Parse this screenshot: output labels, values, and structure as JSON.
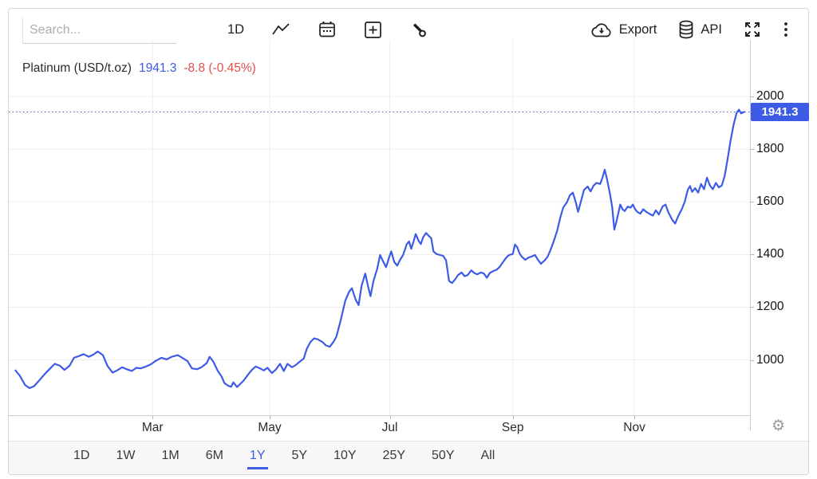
{
  "toolbar": {
    "search_placeholder": "Search...",
    "interval_label": "1D",
    "export_label": "Export",
    "api_label": "API"
  },
  "legend": {
    "instrument": "Platinum (USD/t.oz)",
    "price": "1941.3",
    "change": "-8.8 (-0.45%)"
  },
  "icons": {
    "gear": "⚙"
  },
  "colors": {
    "line": "#3d5be5",
    "badge_bg": "#3d5be5",
    "price_text": "#3d5be5",
    "change_text": "#e2504a",
    "grid": "#ededed",
    "axis": "#cccccc"
  },
  "range_selector": {
    "options": [
      "1D",
      "1W",
      "1M",
      "6M",
      "1Y",
      "5Y",
      "10Y",
      "25Y",
      "50Y",
      "All"
    ],
    "active": "1Y"
  },
  "chart_data": {
    "type": "line",
    "title": "Platinum (USD/t.oz)",
    "last_price": 1941.3,
    "change": -8.8,
    "change_pct": "-0.45%",
    "range": "1Y",
    "grid": true,
    "legend_position": "top-left",
    "y_ticks": [
      1000,
      1200,
      1400,
      1600,
      1800,
      2000
    ],
    "ylim": [
      790,
      2215
    ],
    "x_ticks": [
      {
        "label": "Mar",
        "t": 0.194
      },
      {
        "label": "May",
        "t": 0.352
      },
      {
        "label": "Jul",
        "t": 0.514
      },
      {
        "label": "Sep",
        "t": 0.68
      },
      {
        "label": "Nov",
        "t": 0.844
      }
    ],
    "points": [
      [
        0.009,
        960
      ],
      [
        0.015,
        940
      ],
      [
        0.022,
        905
      ],
      [
        0.028,
        893
      ],
      [
        0.034,
        900
      ],
      [
        0.041,
        922
      ],
      [
        0.048,
        945
      ],
      [
        0.056,
        968
      ],
      [
        0.062,
        985
      ],
      [
        0.069,
        978
      ],
      [
        0.075,
        962
      ],
      [
        0.082,
        978
      ],
      [
        0.088,
        1008
      ],
      [
        0.095,
        1015
      ],
      [
        0.101,
        1022
      ],
      [
        0.108,
        1012
      ],
      [
        0.114,
        1020
      ],
      [
        0.12,
        1032
      ],
      [
        0.127,
        1018
      ],
      [
        0.133,
        978
      ],
      [
        0.14,
        952
      ],
      [
        0.146,
        960
      ],
      [
        0.153,
        972
      ],
      [
        0.159,
        965
      ],
      [
        0.166,
        958
      ],
      [
        0.172,
        970
      ],
      [
        0.178,
        968
      ],
      [
        0.185,
        975
      ],
      [
        0.191,
        982
      ],
      [
        0.199,
        998
      ],
      [
        0.206,
        1008
      ],
      [
        0.213,
        1002
      ],
      [
        0.22,
        1012
      ],
      [
        0.228,
        1018
      ],
      [
        0.234,
        1008
      ],
      [
        0.241,
        996
      ],
      [
        0.247,
        968
      ],
      [
        0.254,
        965
      ],
      [
        0.26,
        972
      ],
      [
        0.267,
        988
      ],
      [
        0.271,
        1012
      ],
      [
        0.276,
        993
      ],
      [
        0.282,
        958
      ],
      [
        0.287,
        938
      ],
      [
        0.291,
        912
      ],
      [
        0.296,
        902
      ],
      [
        0.3,
        898
      ],
      [
        0.303,
        915
      ],
      [
        0.308,
        897
      ],
      [
        0.312,
        908
      ],
      [
        0.317,
        922
      ],
      [
        0.323,
        945
      ],
      [
        0.328,
        962
      ],
      [
        0.333,
        975
      ],
      [
        0.339,
        968
      ],
      [
        0.344,
        960
      ],
      [
        0.349,
        970
      ],
      [
        0.355,
        950
      ],
      [
        0.36,
        962
      ],
      [
        0.366,
        985
      ],
      [
        0.371,
        958
      ],
      [
        0.376,
        985
      ],
      [
        0.382,
        972
      ],
      [
        0.387,
        980
      ],
      [
        0.392,
        992
      ],
      [
        0.398,
        1005
      ],
      [
        0.402,
        1042
      ],
      [
        0.407,
        1068
      ],
      [
        0.412,
        1082
      ],
      [
        0.417,
        1078
      ],
      [
        0.423,
        1068
      ],
      [
        0.428,
        1055
      ],
      [
        0.433,
        1050
      ],
      [
        0.438,
        1068
      ],
      [
        0.442,
        1088
      ],
      [
        0.447,
        1142
      ],
      [
        0.454,
        1225
      ],
      [
        0.459,
        1258
      ],
      [
        0.463,
        1272
      ],
      [
        0.468,
        1228
      ],
      [
        0.472,
        1208
      ],
      [
        0.476,
        1282
      ],
      [
        0.481,
        1328
      ],
      [
        0.485,
        1275
      ],
      [
        0.488,
        1242
      ],
      [
        0.492,
        1300
      ],
      [
        0.497,
        1345
      ],
      [
        0.501,
        1398
      ],
      [
        0.505,
        1375
      ],
      [
        0.509,
        1352
      ],
      [
        0.513,
        1388
      ],
      [
        0.516,
        1412
      ],
      [
        0.52,
        1372
      ],
      [
        0.524,
        1358
      ],
      [
        0.528,
        1380
      ],
      [
        0.532,
        1398
      ],
      [
        0.537,
        1440
      ],
      [
        0.54,
        1450
      ],
      [
        0.543,
        1422
      ],
      [
        0.546,
        1448
      ],
      [
        0.549,
        1478
      ],
      [
        0.553,
        1452
      ],
      [
        0.556,
        1440
      ],
      [
        0.559,
        1465
      ],
      [
        0.563,
        1482
      ],
      [
        0.567,
        1470
      ],
      [
        0.57,
        1462
      ],
      [
        0.573,
        1412
      ],
      [
        0.577,
        1402
      ],
      [
        0.582,
        1398
      ],
      [
        0.586,
        1395
      ],
      [
        0.59,
        1378
      ],
      [
        0.594,
        1300
      ],
      [
        0.598,
        1292
      ],
      [
        0.602,
        1305
      ],
      [
        0.606,
        1322
      ],
      [
        0.611,
        1332
      ],
      [
        0.615,
        1318
      ],
      [
        0.619,
        1322
      ],
      [
        0.624,
        1340
      ],
      [
        0.628,
        1330
      ],
      [
        0.632,
        1325
      ],
      [
        0.637,
        1332
      ],
      [
        0.641,
        1328
      ],
      [
        0.645,
        1312
      ],
      [
        0.649,
        1330
      ],
      [
        0.654,
        1338
      ],
      [
        0.658,
        1342
      ],
      [
        0.662,
        1352
      ],
      [
        0.667,
        1372
      ],
      [
        0.671,
        1388
      ],
      [
        0.675,
        1398
      ],
      [
        0.68,
        1402
      ],
      [
        0.683,
        1438
      ],
      [
        0.686,
        1428
      ],
      [
        0.689,
        1405
      ],
      [
        0.692,
        1392
      ],
      [
        0.697,
        1380
      ],
      [
        0.701,
        1388
      ],
      [
        0.705,
        1392
      ],
      [
        0.71,
        1398
      ],
      [
        0.714,
        1380
      ],
      [
        0.718,
        1365
      ],
      [
        0.723,
        1378
      ],
      [
        0.727,
        1392
      ],
      [
        0.731,
        1418
      ],
      [
        0.735,
        1448
      ],
      [
        0.74,
        1492
      ],
      [
        0.744,
        1540
      ],
      [
        0.748,
        1578
      ],
      [
        0.753,
        1598
      ],
      [
        0.757,
        1625
      ],
      [
        0.761,
        1635
      ],
      [
        0.765,
        1598
      ],
      [
        0.768,
        1562
      ],
      [
        0.772,
        1602
      ],
      [
        0.776,
        1645
      ],
      [
        0.781,
        1658
      ],
      [
        0.785,
        1640
      ],
      [
        0.789,
        1662
      ],
      [
        0.793,
        1672
      ],
      [
        0.798,
        1668
      ],
      [
        0.801,
        1692
      ],
      [
        0.804,
        1722
      ],
      [
        0.807,
        1688
      ],
      [
        0.811,
        1632
      ],
      [
        0.814,
        1582
      ],
      [
        0.817,
        1495
      ],
      [
        0.82,
        1528
      ],
      [
        0.825,
        1590
      ],
      [
        0.828,
        1572
      ],
      [
        0.831,
        1565
      ],
      [
        0.835,
        1582
      ],
      [
        0.839,
        1578
      ],
      [
        0.842,
        1590
      ],
      [
        0.845,
        1572
      ],
      [
        0.848,
        1562
      ],
      [
        0.852,
        1555
      ],
      [
        0.856,
        1572
      ],
      [
        0.86,
        1562
      ],
      [
        0.864,
        1555
      ],
      [
        0.869,
        1548
      ],
      [
        0.873,
        1568
      ],
      [
        0.877,
        1552
      ],
      [
        0.882,
        1582
      ],
      [
        0.886,
        1590
      ],
      [
        0.89,
        1560
      ],
      [
        0.895,
        1532
      ],
      [
        0.899,
        1518
      ],
      [
        0.903,
        1545
      ],
      [
        0.908,
        1572
      ],
      [
        0.912,
        1600
      ],
      [
        0.916,
        1645
      ],
      [
        0.919,
        1660
      ],
      [
        0.922,
        1638
      ],
      [
        0.926,
        1652
      ],
      [
        0.93,
        1635
      ],
      [
        0.934,
        1668
      ],
      [
        0.938,
        1648
      ],
      [
        0.942,
        1692
      ],
      [
        0.946,
        1662
      ],
      [
        0.95,
        1648
      ],
      [
        0.954,
        1672
      ],
      [
        0.958,
        1655
      ],
      [
        0.962,
        1662
      ],
      [
        0.966,
        1700
      ],
      [
        0.97,
        1765
      ],
      [
        0.974,
        1835
      ],
      [
        0.978,
        1895
      ],
      [
        0.982,
        1938
      ],
      [
        0.985,
        1950
      ],
      [
        0.988,
        1936
      ],
      [
        0.992,
        1941.3
      ]
    ]
  }
}
